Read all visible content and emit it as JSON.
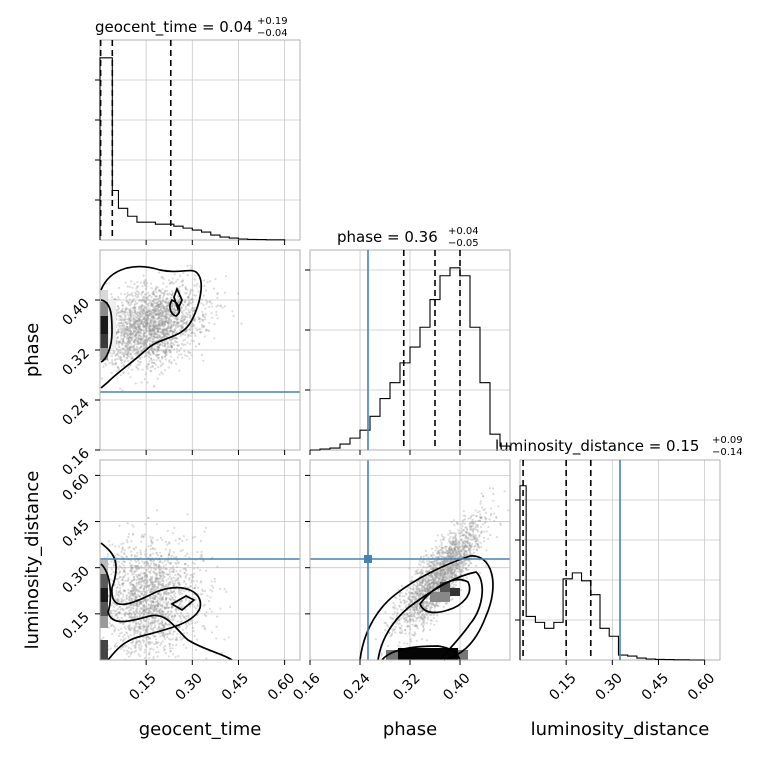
{
  "colors": {
    "truth": "#4682b4",
    "line": "#000000",
    "samples": "#999999",
    "grid": "#c8c8c8"
  },
  "chart_data": {
    "type": "corner",
    "parameters": [
      "geocent_time",
      "phase",
      "luminosity_distance"
    ],
    "truths": {
      "geocent_time": null,
      "phase": 0.25,
      "luminosity_distance": 0.31
    },
    "titles": [
      {
        "param": "geocent_time",
        "text": "geocent_time = 0.04",
        "sup": "+0.19",
        "sub": "−0.04"
      },
      {
        "param": "phase",
        "text": "phase = 0.36",
        "sup": "+0.04",
        "sub": "−0.05"
      },
      {
        "param": "luminosity_distance",
        "text": "luminosity_distance = 0.15",
        "sup": "+0.09",
        "sub": "−0.14"
      }
    ],
    "axis_labels": {
      "x": [
        "geocent_time",
        "phase",
        "luminosity_distance"
      ],
      "y": [
        "phase",
        "luminosity_distance"
      ]
    },
    "ticks": {
      "geocent_time": {
        "range": [
          0,
          0.65
        ],
        "values": [
          0.15,
          0.3,
          0.45,
          0.6
        ],
        "labels": [
          "0.15",
          "0.30",
          "0.45",
          "0.60"
        ]
      },
      "phase_x": {
        "range": [
          0.16,
          0.48
        ],
        "values": [
          0.16,
          0.24,
          0.32,
          0.4
        ],
        "labels": [
          "0.16",
          "0.24",
          "0.32",
          "0.40"
        ]
      },
      "phase_y": {
        "range": [
          0.16,
          0.48
        ],
        "values": [
          0.16,
          0.24,
          0.32,
          0.4
        ],
        "labels": [
          "0.16",
          "0.24",
          "0.32",
          "0.40"
        ]
      },
      "luminosity_distance": {
        "range": [
          0,
          0.65
        ],
        "values": [
          0.15,
          0.3,
          0.45,
          0.6
        ],
        "labels": [
          "0.15",
          "0.30",
          "0.45",
          "0.60"
        ]
      }
    },
    "histograms": {
      "geocent_time": {
        "quantiles": [
          0.002,
          0.04,
          0.23
        ],
        "edges": [
          0,
          0.02,
          0.04,
          0.06,
          0.09,
          0.12,
          0.15,
          0.18,
          0.21,
          0.24,
          0.27,
          0.3,
          0.33,
          0.36,
          0.39,
          0.42,
          0.45,
          0.48,
          0.51,
          0.54,
          0.57,
          0.6
        ],
        "counts": [
          0.92,
          0.92,
          0.25,
          0.16,
          0.12,
          0.09,
          0.09,
          0.08,
          0.08,
          0.07,
          0.06,
          0.05,
          0.04,
          0.025,
          0.015,
          0.01,
          0.005,
          0.003,
          0.002,
          0.001,
          0.001
        ]
      },
      "phase": {
        "quantiles": [
          0.31,
          0.36,
          0.4
        ],
        "edges": [
          0.16,
          0.176,
          0.192,
          0.208,
          0.224,
          0.24,
          0.256,
          0.272,
          0.288,
          0.304,
          0.32,
          0.336,
          0.352,
          0.368,
          0.384,
          0.4,
          0.416,
          0.432,
          0.448,
          0.464,
          0.48
        ],
        "counts": [
          0.0,
          0.005,
          0.01,
          0.03,
          0.06,
          0.1,
          0.17,
          0.26,
          0.34,
          0.44,
          0.52,
          0.62,
          0.76,
          0.88,
          0.92,
          0.88,
          0.62,
          0.34,
          0.08,
          0.02
        ]
      },
      "luminosity_distance": {
        "quantiles": [
          0.01,
          0.15,
          0.23
        ],
        "edges": [
          0,
          0.02,
          0.05,
          0.08,
          0.11,
          0.14,
          0.17,
          0.2,
          0.23,
          0.26,
          0.29,
          0.32,
          0.35,
          0.38,
          0.41,
          0.44,
          0.47,
          0.5,
          0.55,
          0.6
        ],
        "counts": [
          0.88,
          0.22,
          0.19,
          0.16,
          0.19,
          0.41,
          0.44,
          0.4,
          0.33,
          0.16,
          0.12,
          0.025,
          0.02,
          0.01,
          0.005,
          0.003,
          0.002,
          0.001,
          0.0
        ]
      }
    }
  }
}
